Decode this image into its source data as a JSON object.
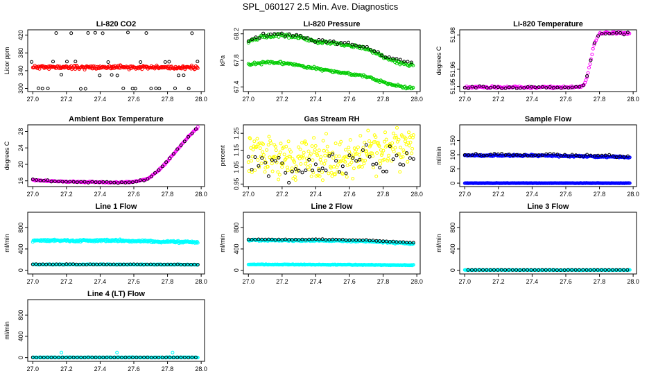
{
  "page_title": "SPL_060127  2.5 Min. Ave. Diagnostics",
  "chart_data": [
    {
      "type": "scatter",
      "title": "Li-820 CO2",
      "xlabel": "",
      "ylabel": "Licor ppm",
      "xlim": [
        26.97,
        28.02
      ],
      "ylim": [
        293,
        432
      ],
      "xticks": [
        "27.0",
        "27.2",
        "27.4",
        "27.6",
        "27.8",
        "28.0"
      ],
      "yticks": [
        "300",
        "340",
        "380",
        "420"
      ],
      "series": [
        {
          "name": "reference",
          "color": "#ff0000",
          "kind": "band",
          "x": [
            27.0,
            27.98
          ],
          "y": [
            348,
            347
          ],
          "noise": 2,
          "spacing": 0.004,
          "seed": 11
        },
        {
          "name": "diagnostic",
          "color": "#000000",
          "kind": "levels",
          "x": [
            27.0,
            27.98
          ],
          "levels": [
            300,
            330,
            360,
            425
          ],
          "spacing": 0.028,
          "seed": 12
        }
      ]
    },
    {
      "type": "scatter",
      "title": "Li-820 Pressure",
      "xlabel": "",
      "ylabel": "kPa",
      "xlim": [
        26.97,
        28.02
      ],
      "ylim": [
        67.33,
        68.26
      ],
      "xticks": [
        "27.0",
        "27.2",
        "27.4",
        "27.6",
        "27.8",
        "28.0"
      ],
      "yticks": [
        "67.4",
        "67.8",
        "68.2"
      ],
      "series": [
        {
          "name": "line-a",
          "color": "#00cc00",
          "kind": "curve",
          "x": [
            27.0,
            27.1,
            27.2,
            27.3,
            27.4,
            27.5,
            27.6,
            27.7,
            27.8,
            27.9,
            27.98
          ],
          "y": [
            68.08,
            68.17,
            68.18,
            68.15,
            68.08,
            68.06,
            68.02,
            67.98,
            67.85,
            67.76,
            67.73
          ],
          "noise": 0.012,
          "spacing": 0.006,
          "seed": 21
        },
        {
          "name": "line-b",
          "color": "#000000",
          "kind": "curve",
          "x": [
            27.0,
            27.1,
            27.2,
            27.3,
            27.4,
            27.5,
            27.6,
            27.7,
            27.8,
            27.9,
            27.98
          ],
          "y": [
            68.11,
            68.19,
            68.2,
            68.17,
            68.1,
            68.08,
            68.04,
            68.0,
            67.88,
            67.8,
            67.76
          ],
          "noise": 0.012,
          "spacing": 0.022,
          "seed": 22
        },
        {
          "name": "line-c",
          "color": "#00cc00",
          "kind": "curve",
          "x": [
            27.0,
            27.1,
            27.2,
            27.3,
            27.4,
            27.5,
            27.6,
            27.7,
            27.8,
            27.9,
            27.98
          ],
          "y": [
            67.73,
            67.77,
            67.76,
            67.73,
            67.68,
            67.63,
            67.6,
            67.56,
            67.47,
            67.41,
            67.38
          ],
          "noise": 0.01,
          "spacing": 0.006,
          "seed": 23
        }
      ]
    },
    {
      "type": "scatter",
      "title": "Li-820 Temperature",
      "xlabel": "",
      "ylabel": "degrees C",
      "xlim": [
        26.97,
        28.02
      ],
      "ylim": [
        51.947,
        51.983
      ],
      "xticks": [
        "27.0",
        "27.2",
        "27.4",
        "27.6",
        "27.8",
        "28.0"
      ],
      "yticks": [
        "51.95",
        "51.96",
        "51.98"
      ],
      "series": [
        {
          "name": "sensor",
          "color": "#ff00ff",
          "kind": "curve",
          "x": [
            27.0,
            27.2,
            27.4,
            27.6,
            27.68,
            27.71,
            27.73,
            27.75,
            27.77,
            27.8,
            27.9,
            27.98
          ],
          "y": [
            51.9495,
            51.9495,
            51.9495,
            51.9495,
            51.9495,
            51.951,
            51.957,
            51.966,
            51.975,
            51.981,
            51.981,
            51.981
          ],
          "noise": 0.0003,
          "spacing": 0.006,
          "seed": 31
        },
        {
          "name": "diagnostic",
          "color": "#000000",
          "kind": "curve",
          "x": [
            27.0,
            27.2,
            27.4,
            27.6,
            27.68,
            27.71,
            27.73,
            27.75,
            27.77,
            27.8,
            27.9,
            27.98
          ],
          "y": [
            51.9495,
            51.9495,
            51.9495,
            51.9495,
            51.9495,
            51.951,
            51.957,
            51.966,
            51.975,
            51.981,
            51.981,
            51.981
          ],
          "noise": 0.0003,
          "spacing": 0.022,
          "seed": 32
        }
      ]
    },
    {
      "type": "scatter",
      "title": "Ambient Box Temperature",
      "xlabel": "",
      "ylabel": "degrees C",
      "xlim": [
        26.97,
        28.02
      ],
      "ylim": [
        14.6,
        29.6
      ],
      "xticks": [
        "27.0",
        "27.2",
        "27.4",
        "27.6",
        "27.8",
        "28.0"
      ],
      "yticks": [
        "16",
        "20",
        "24",
        "28"
      ],
      "series": [
        {
          "name": "sensor",
          "color": "#ff00ff",
          "kind": "curve",
          "x": [
            27.0,
            27.1,
            27.3,
            27.5,
            27.6,
            27.68,
            27.75,
            27.8,
            27.85,
            27.9,
            27.95,
            27.98
          ],
          "y": [
            16.2,
            15.9,
            15.7,
            15.6,
            15.7,
            16.4,
            18.6,
            20.8,
            23.2,
            25.6,
            27.8,
            29.0
          ],
          "noise": 0.08,
          "spacing": 0.005,
          "seed": 41
        },
        {
          "name": "diagnostic",
          "color": "#000000",
          "kind": "curve",
          "x": [
            27.0,
            27.1,
            27.3,
            27.5,
            27.6,
            27.68,
            27.75,
            27.8,
            27.85,
            27.9,
            27.95,
            27.98
          ],
          "y": [
            16.2,
            15.9,
            15.7,
            15.6,
            15.7,
            16.4,
            18.6,
            20.8,
            23.2,
            25.6,
            27.8,
            29.0
          ],
          "noise": 0.08,
          "spacing": 0.022,
          "seed": 42
        }
      ]
    },
    {
      "type": "scatter",
      "title": "Gas Stream RH",
      "xlabel": "",
      "ylabel": "percent",
      "xlim": [
        26.97,
        28.02
      ],
      "ylim": [
        0.935,
        1.3
      ],
      "xticks": [
        "27.0",
        "27.2",
        "27.4",
        "27.6",
        "27.8",
        "28.0"
      ],
      "yticks": [
        "0.95",
        "1.05",
        "1.15",
        "1.25"
      ],
      "series": [
        {
          "name": "sensor",
          "color": "#ffff00",
          "kind": "curve",
          "x": [
            27.0,
            27.2,
            27.4,
            27.6,
            27.8,
            27.98
          ],
          "y": [
            1.12,
            1.1,
            1.09,
            1.11,
            1.15,
            1.16
          ],
          "noise": 0.06,
          "spacing": 0.0035,
          "seed": 51
        },
        {
          "name": "diagnostic",
          "color": "#000000",
          "kind": "curve",
          "x": [
            27.0,
            27.2,
            27.4,
            27.6,
            27.8,
            27.98
          ],
          "y": [
            1.06,
            1.05,
            1.04,
            1.06,
            1.1,
            1.12
          ],
          "noise": 0.05,
          "spacing": 0.02,
          "seed": 52
        }
      ]
    },
    {
      "type": "scatter",
      "title": "Sample Flow",
      "xlabel": "",
      "ylabel": "ml/min",
      "xlim": [
        26.97,
        28.02
      ],
      "ylim": [
        -12,
        205
      ],
      "xticks": [
        "27.0",
        "27.2",
        "27.4",
        "27.6",
        "27.8",
        "28.0"
      ],
      "yticks": [
        "0",
        "50",
        "100",
        "150"
      ],
      "series": [
        {
          "name": "flow",
          "color": "#0000ff",
          "kind": "curve",
          "x": [
            27.0,
            27.5,
            27.98
          ],
          "y": [
            97,
            97,
            91
          ],
          "noise": 1.5,
          "spacing": 0.004,
          "seed": 61
        },
        {
          "name": "zero",
          "color": "#0000ff",
          "kind": "curve",
          "x": [
            27.0,
            27.98
          ],
          "y": [
            0,
            0
          ],
          "noise": 0.3,
          "spacing": 0.004,
          "seed": 62
        },
        {
          "name": "diagnostic",
          "color": "#000000",
          "kind": "curve",
          "x": [
            27.0,
            27.5,
            27.98
          ],
          "y": [
            100,
            100,
            94
          ],
          "noise": 2,
          "spacing": 0.022,
          "seed": 63
        }
      ]
    },
    {
      "type": "scatter",
      "title": "Line 1 Flow",
      "xlabel": "",
      "ylabel": "ml/min",
      "xlim": [
        26.97,
        28.02
      ],
      "ylim": [
        -70,
        1090
      ],
      "xticks": [
        "27.0",
        "27.2",
        "27.4",
        "27.6",
        "27.8",
        "28.0"
      ],
      "yticks": [
        "0",
        "400",
        "800"
      ],
      "series": [
        {
          "name": "flow",
          "color": "#00ffff",
          "kind": "curve",
          "x": [
            27.0,
            27.5,
            27.98
          ],
          "y": [
            560,
            555,
            525
          ],
          "noise": 10,
          "spacing": 0.0035,
          "seed": 71
        },
        {
          "name": "flow-low",
          "color": "#00ffff",
          "kind": "curve",
          "x": [
            27.0,
            27.5,
            27.98
          ],
          "y": [
            108,
            108,
            104
          ],
          "noise": 3,
          "spacing": 0.004,
          "seed": 72
        },
        {
          "name": "diagnostic",
          "color": "#000000",
          "kind": "curve",
          "x": [
            27.0,
            27.5,
            27.98
          ],
          "y": [
            110,
            110,
            106
          ],
          "noise": 2,
          "spacing": 0.02,
          "seed": 73
        }
      ]
    },
    {
      "type": "scatter",
      "title": "Line 2 Flow",
      "xlabel": "",
      "ylabel": "ml/min",
      "xlim": [
        26.97,
        28.02
      ],
      "ylim": [
        -70,
        1090
      ],
      "xticks": [
        "27.0",
        "27.2",
        "27.4",
        "27.6",
        "27.8",
        "28.0"
      ],
      "yticks": [
        "0",
        "400",
        "800"
      ],
      "series": [
        {
          "name": "flow",
          "color": "#00ffff",
          "kind": "curve",
          "x": [
            27.0,
            27.5,
            27.7,
            27.98
          ],
          "y": [
            565,
            555,
            545,
            500
          ],
          "noise": 8,
          "spacing": 0.0035,
          "seed": 81
        },
        {
          "name": "flow-low",
          "color": "#00ffff",
          "kind": "curve",
          "x": [
            27.0,
            27.5,
            27.98
          ],
          "y": [
            108,
            105,
            95
          ],
          "noise": 3,
          "spacing": 0.004,
          "seed": 82
        },
        {
          "name": "diagnostic",
          "color": "#000000",
          "kind": "curve",
          "x": [
            27.0,
            27.5,
            27.7,
            27.98
          ],
          "y": [
            580,
            575,
            565,
            515
          ],
          "noise": 4,
          "spacing": 0.02,
          "seed": 83
        }
      ]
    },
    {
      "type": "scatter",
      "title": "Line 3 Flow",
      "xlabel": "",
      "ylabel": "ml/min",
      "xlim": [
        26.97,
        28.02
      ],
      "ylim": [
        -70,
        1090
      ],
      "xticks": [
        "27.0",
        "27.2",
        "27.4",
        "27.6",
        "27.8",
        "28.0"
      ],
      "yticks": [
        "0",
        "400",
        "800"
      ],
      "series": [
        {
          "name": "flow",
          "color": "#00ffff",
          "kind": "curve",
          "x": [
            27.0,
            27.98
          ],
          "y": [
            4,
            4
          ],
          "noise": 2,
          "spacing": 0.004,
          "seed": 91
        },
        {
          "name": "diagnostic",
          "color": "#000000",
          "kind": "curve",
          "x": [
            27.02,
            27.98
          ],
          "y": [
            4,
            4
          ],
          "noise": 1,
          "spacing": 0.022,
          "seed": 92
        }
      ]
    },
    {
      "type": "scatter",
      "title": "Line 4 (LT) Flow",
      "xlabel": "",
      "ylabel": "ml/min",
      "xlim": [
        26.97,
        28.02
      ],
      "ylim": [
        -70,
        1090
      ],
      "xticks": [
        "27.0",
        "27.2",
        "27.4",
        "27.6",
        "27.8",
        "28.0"
      ],
      "yticks": [
        "0",
        "400",
        "800"
      ],
      "series": [
        {
          "name": "flow",
          "color": "#00ffff",
          "kind": "curve",
          "x": [
            27.0,
            27.98
          ],
          "y": [
            4,
            4
          ],
          "noise": 2,
          "spacing": 0.004,
          "seed": 101
        },
        {
          "name": "diagnostic",
          "color": "#000000",
          "kind": "curve",
          "x": [
            27.0,
            27.98
          ],
          "y": [
            4,
            4
          ],
          "noise": 1,
          "spacing": 0.022,
          "seed": 102
        },
        {
          "name": "spikes",
          "color": "#00ffff",
          "kind": "points",
          "x": [
            27.17,
            27.5,
            27.83
          ],
          "y": [
            95,
            95,
            95
          ]
        }
      ]
    }
  ]
}
